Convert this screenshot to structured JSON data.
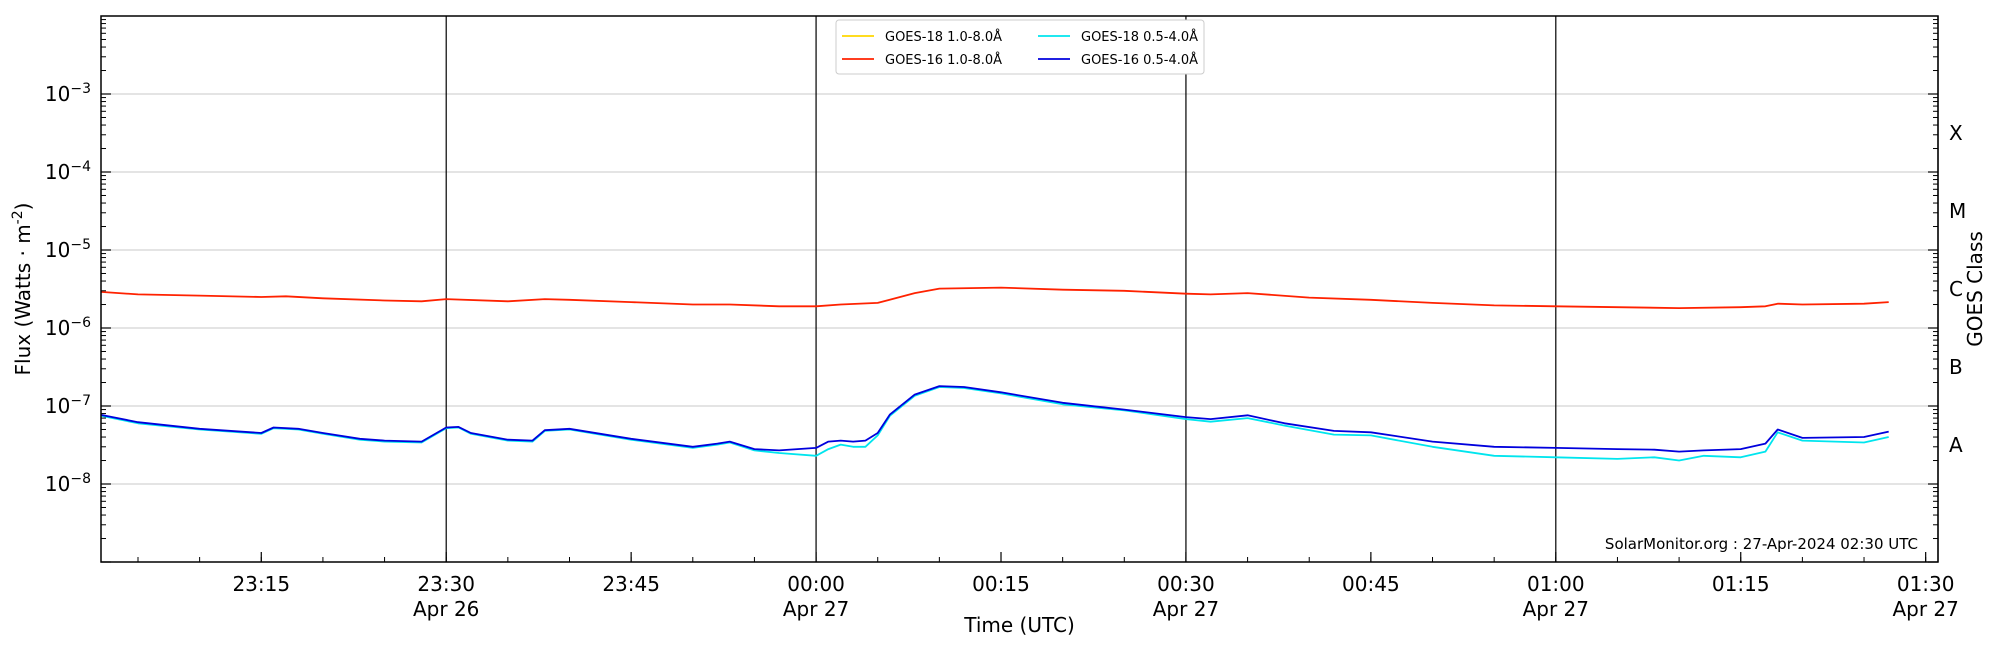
{
  "chart_data": {
    "type": "line",
    "title": "",
    "xlabel": "Time (UTC)",
    "ylabel": "Flux (Watts · m",
    "ylabel_exponent": "-2",
    "ylabel_close": ")",
    "right_label": "GOES Class",
    "y_scale": "log",
    "ylim_exp": [
      -9,
      -2
    ],
    "xlim": [
      "23:02",
      "01:31"
    ],
    "grid": "horizontal",
    "legend_position": "top-center",
    "credit": "SolarMonitor.org : 27-Apr-2024 02:30 UTC",
    "y_ticks": [
      {
        "base": "10",
        "exp": "−3",
        "value": -3
      },
      {
        "base": "10",
        "exp": "−4",
        "value": -4
      },
      {
        "base": "10",
        "exp": "−5",
        "value": -5
      },
      {
        "base": "10",
        "exp": "−6",
        "value": -6
      },
      {
        "base": "10",
        "exp": "−7",
        "value": -7
      },
      {
        "base": "10",
        "exp": "−8",
        "value": -8
      }
    ],
    "class_labels": [
      {
        "label": "X",
        "value": -3.5
      },
      {
        "label": "M",
        "value": -4.5
      },
      {
        "label": "C",
        "value": -5.5
      },
      {
        "label": "B",
        "value": -6.5
      },
      {
        "label": "A",
        "value": -7.5
      }
    ],
    "x_ticks": [
      {
        "time": "23:15",
        "label": "23:15",
        "date": ""
      },
      {
        "time": "23:30",
        "label": "23:30",
        "date": "Apr 26"
      },
      {
        "time": "23:45",
        "label": "23:45",
        "date": ""
      },
      {
        "time": "00:00",
        "label": "00:00",
        "date": "Apr 27"
      },
      {
        "time": "00:15",
        "label": "00:15",
        "date": ""
      },
      {
        "time": "00:30",
        "label": "00:30",
        "date": "Apr 27"
      },
      {
        "time": "00:45",
        "label": "00:45",
        "date": ""
      },
      {
        "time": "01:00",
        "label": "01:00",
        "date": "Apr 27"
      },
      {
        "time": "01:15",
        "label": "01:15",
        "date": ""
      },
      {
        "time": "01:30",
        "label": "01:30",
        "date": "Apr 27"
      }
    ],
    "vertical_lines": [
      "23:30",
      "00:00",
      "00:30",
      "01:00",
      "01:31"
    ],
    "series": [
      {
        "name": "GOES-18 1.0-8.0Å",
        "color": "#FFD700",
        "x": [],
        "y": []
      },
      {
        "name": "GOES-16 1.0-8.0Å",
        "color": "#FF2200",
        "x": [
          "23:02",
          "23:05",
          "23:10",
          "23:15",
          "23:17",
          "23:20",
          "23:25",
          "23:28",
          "23:30",
          "23:35",
          "23:38",
          "23:40",
          "23:45",
          "23:50",
          "23:53",
          "23:57",
          "00:00",
          "00:02",
          "00:05",
          "00:08",
          "00:10",
          "00:15",
          "00:20",
          "00:25",
          "00:30",
          "00:32",
          "00:35",
          "00:40",
          "00:45",
          "00:50",
          "00:55",
          "01:00",
          "01:05",
          "01:10",
          "01:15",
          "01:17",
          "01:18",
          "01:20",
          "01:25",
          "01:27"
        ],
        "y": [
          2.9e-06,
          2.7e-06,
          2.6e-06,
          2.5e-06,
          2.55e-06,
          2.4e-06,
          2.25e-06,
          2.2e-06,
          2.35e-06,
          2.2e-06,
          2.35e-06,
          2.3e-06,
          2.15e-06,
          2e-06,
          2e-06,
          1.9e-06,
          1.9e-06,
          2e-06,
          2.1e-06,
          2.8e-06,
          3.2e-06,
          3.3e-06,
          3.1e-06,
          3e-06,
          2.75e-06,
          2.7e-06,
          2.8e-06,
          2.45e-06,
          2.3e-06,
          2.1e-06,
          1.95e-06,
          1.9e-06,
          1.85e-06,
          1.8e-06,
          1.85e-06,
          1.9e-06,
          2.05e-06,
          2e-06,
          2.05e-06,
          2.15e-06
        ]
      },
      {
        "name": "GOES-18 0.5-4.0Å",
        "color": "#00E5EE",
        "x": [
          "23:02",
          "23:05",
          "23:10",
          "23:15",
          "23:16",
          "23:18",
          "23:20",
          "23:23",
          "23:25",
          "23:28",
          "23:30",
          "23:31",
          "23:32",
          "23:35",
          "23:37",
          "23:38",
          "23:40",
          "23:45",
          "23:50",
          "23:52",
          "23:53",
          "23:55",
          "23:57",
          "00:00",
          "00:01",
          "00:02",
          "00:03",
          "00:04",
          "00:05",
          "00:06",
          "00:08",
          "00:10",
          "00:12",
          "00:15",
          "00:20",
          "00:25",
          "00:30",
          "00:32",
          "00:35",
          "00:38",
          "00:42",
          "00:45",
          "00:50",
          "00:55",
          "01:00",
          "01:05",
          "01:08",
          "01:10",
          "01:12",
          "01:15",
          "01:17",
          "01:18",
          "01:20",
          "01:25",
          "01:27"
        ],
        "y": [
          7.5e-08,
          6e-08,
          5e-08,
          4.4e-08,
          5.2e-08,
          5e-08,
          4.4e-08,
          3.7e-08,
          3.5e-08,
          3.4e-08,
          5.2e-08,
          5.3e-08,
          4.4e-08,
          3.6e-08,
          3.5e-08,
          4.8e-08,
          5e-08,
          3.7e-08,
          2.9e-08,
          3.2e-08,
          3.4e-08,
          2.7e-08,
          2.5e-08,
          2.3e-08,
          2.8e-08,
          3.2e-08,
          3e-08,
          3e-08,
          4.2e-08,
          7.5e-08,
          1.35e-07,
          1.75e-07,
          1.7e-07,
          1.45e-07,
          1.05e-07,
          8.8e-08,
          6.8e-08,
          6.3e-08,
          7e-08,
          5.6e-08,
          4.3e-08,
          4.2e-08,
          3e-08,
          2.3e-08,
          2.2e-08,
          2.1e-08,
          2.2e-08,
          2e-08,
          2.3e-08,
          2.2e-08,
          2.6e-08,
          4.6e-08,
          3.6e-08,
          3.4e-08,
          4e-08
        ]
      },
      {
        "name": "GOES-16 0.5-4.0Å",
        "color": "#0000DD",
        "x": [
          "23:02",
          "23:05",
          "23:10",
          "23:15",
          "23:16",
          "23:18",
          "23:20",
          "23:23",
          "23:25",
          "23:28",
          "23:30",
          "23:31",
          "23:32",
          "23:35",
          "23:37",
          "23:38",
          "23:40",
          "23:45",
          "23:50",
          "23:52",
          "23:53",
          "23:55",
          "23:57",
          "00:00",
          "00:01",
          "00:02",
          "00:03",
          "00:04",
          "00:05",
          "00:06",
          "00:08",
          "00:10",
          "00:12",
          "00:15",
          "00:20",
          "00:25",
          "00:30",
          "00:32",
          "00:35",
          "00:38",
          "00:42",
          "00:45",
          "00:50",
          "00:55",
          "01:00",
          "01:05",
          "01:08",
          "01:10",
          "01:12",
          "01:15",
          "01:17",
          "01:18",
          "01:20",
          "01:25",
          "01:27"
        ],
        "y": [
          7.7e-08,
          6.2e-08,
          5.1e-08,
          4.5e-08,
          5.3e-08,
          5.1e-08,
          4.5e-08,
          3.8e-08,
          3.6e-08,
          3.5e-08,
          5.3e-08,
          5.4e-08,
          4.5e-08,
          3.7e-08,
          3.6e-08,
          4.9e-08,
          5.1e-08,
          3.8e-08,
          3e-08,
          3.3e-08,
          3.5e-08,
          2.8e-08,
          2.7e-08,
          2.9e-08,
          3.5e-08,
          3.6e-08,
          3.5e-08,
          3.6e-08,
          4.5e-08,
          7.8e-08,
          1.4e-07,
          1.8e-07,
          1.75e-07,
          1.5e-07,
          1.1e-07,
          9e-08,
          7.2e-08,
          6.8e-08,
          7.6e-08,
          6e-08,
          4.8e-08,
          4.6e-08,
          3.5e-08,
          3e-08,
          2.9e-08,
          2.8e-08,
          2.75e-08,
          2.6e-08,
          2.7e-08,
          2.8e-08,
          3.3e-08,
          5e-08,
          3.9e-08,
          4e-08,
          4.7e-08
        ]
      }
    ]
  }
}
